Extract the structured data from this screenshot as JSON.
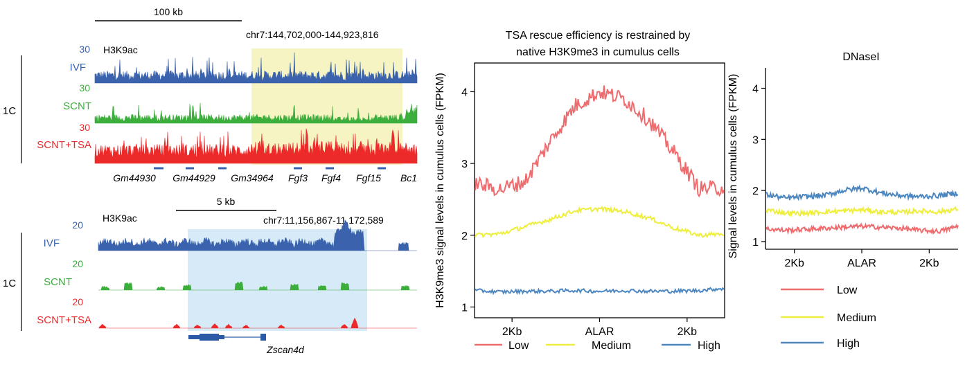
{
  "colors": {
    "ivf": "#3a62ad",
    "scnt": "#3cae3c",
    "tsa": "#ec2a2a",
    "low": "#ee6b6e",
    "medium": "#eeee3e",
    "high": "#4d87c0",
    "hl1": "#f7f4c3",
    "hl2": "#d7eaf7"
  },
  "tracks": {
    "panel1": {
      "scale": "100 kb",
      "mark": "H3K9ac",
      "coord": "chr7:144,702,000-144,923,816",
      "group": "1C",
      "labels": [
        "IVF",
        "SCNT",
        "SCNT+TSA"
      ],
      "max": [
        "30",
        "30",
        "30"
      ],
      "genes": [
        "Gm44930",
        "Gm44929",
        "Gm34964",
        "Fgf3",
        "Fgf4",
        "Fgf15",
        "Bc1"
      ]
    },
    "panel2": {
      "scale": "5 kb",
      "mark": "H3K9ac",
      "coord": "chr7:11,156,867-11,172,589",
      "group": "1C",
      "labels": [
        "IVF",
        "SCNT",
        "SCNT+TSA"
      ],
      "max": [
        "20",
        "20",
        "20"
      ],
      "genes": [
        "Zscan4d"
      ]
    }
  },
  "chart_data": [
    {
      "type": "line",
      "title": "TSA rescue efficiency is restrained by native H3K9me3 in cumulus cells",
      "title_lines": [
        "TSA rescue efficiency is restrained by",
        "native H3K9me3 in cumulus cells"
      ],
      "xlabel": "",
      "ylabel": "H3K9me3 signal levels in cumulus cells (FPKM)",
      "xticks": [
        "2Kb",
        "ALAR",
        "2Kb"
      ],
      "yticks": [
        "1",
        "2",
        "3",
        "4"
      ],
      "ylim": [
        0.85,
        4.4
      ],
      "x": [
        0,
        0.1,
        0.2,
        0.3,
        0.4,
        0.5,
        0.6,
        0.7,
        0.8,
        0.9,
        1.0
      ],
      "legend_placement": "bottom",
      "series": [
        {
          "name": "Low",
          "values": [
            2.72,
            2.64,
            2.75,
            3.3,
            3.8,
            4.0,
            3.9,
            3.6,
            3.15,
            2.65,
            2.66
          ]
        },
        {
          "name": "Medium",
          "values": [
            2.0,
            2.02,
            2.12,
            2.22,
            2.34,
            2.37,
            2.33,
            2.24,
            2.1,
            2.0,
            2.02
          ]
        },
        {
          "name": "High",
          "values": [
            1.23,
            1.21,
            1.22,
            1.22,
            1.23,
            1.22,
            1.23,
            1.22,
            1.22,
            1.23,
            1.26
          ]
        }
      ]
    },
    {
      "type": "line",
      "title": "DNaseI",
      "xlabel": "",
      "ylabel": "Signal levels in cumulus cells (FPKM)",
      "xticks": [
        "2Kb",
        "ALAR",
        "2Kb"
      ],
      "yticks": [
        "1",
        "2",
        "3",
        "4"
      ],
      "ylim": [
        0.85,
        4.4
      ],
      "x": [
        0,
        0.1,
        0.2,
        0.3,
        0.4,
        0.5,
        0.6,
        0.7,
        0.8,
        0.9,
        1.0
      ],
      "legend_placement": "bottom",
      "series": [
        {
          "name": "Low",
          "values": [
            1.25,
            1.22,
            1.24,
            1.26,
            1.28,
            1.3,
            1.28,
            1.26,
            1.22,
            1.2,
            1.3
          ]
        },
        {
          "name": "Medium",
          "values": [
            1.62,
            1.56,
            1.55,
            1.58,
            1.6,
            1.62,
            1.58,
            1.57,
            1.6,
            1.58,
            1.64
          ]
        },
        {
          "name": "High",
          "values": [
            1.92,
            1.85,
            1.88,
            1.9,
            2.0,
            2.05,
            1.95,
            1.9,
            1.88,
            1.9,
            1.95
          ]
        }
      ]
    }
  ]
}
